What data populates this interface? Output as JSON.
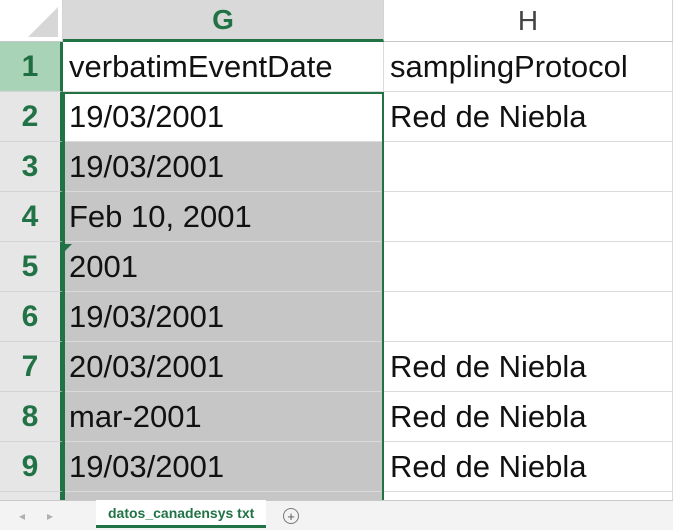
{
  "columns": [
    {
      "letter": "G",
      "selected": true
    },
    {
      "letter": "H",
      "selected": false
    }
  ],
  "rows": [
    {
      "num": "1",
      "g": "verbatimEventDate",
      "h": "samplingProtocol"
    },
    {
      "num": "2",
      "g": "19/03/2001",
      "h": "Red de Niebla"
    },
    {
      "num": "3",
      "g": "19/03/2001",
      "h": ""
    },
    {
      "num": "4",
      "g": "Feb 10, 2001",
      "h": ""
    },
    {
      "num": "5",
      "g": "2001",
      "h": ""
    },
    {
      "num": "6",
      "g": "19/03/2001",
      "h": ""
    },
    {
      "num": "7",
      "g": "20/03/2001",
      "h": "Red de Niebla"
    },
    {
      "num": "8",
      "g": "mar-2001",
      "h": "Red de Niebla"
    },
    {
      "num": "9",
      "g": "19/03/2001",
      "h": "Red de Niebla"
    }
  ],
  "sheet_tab": {
    "label": "datos_canadensys txt"
  },
  "add_sheet_icon": "plus-circle-icon",
  "nav_icons": {
    "prev": "◂",
    "next": "▸"
  },
  "add_sheet_glyph": "+",
  "accent_color": "#217346"
}
